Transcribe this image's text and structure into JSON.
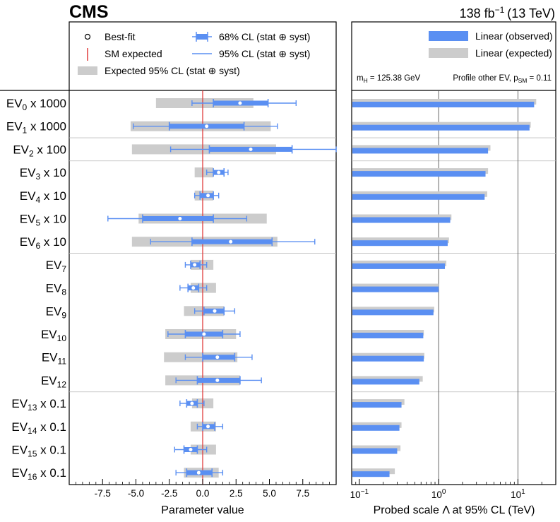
{
  "header": {
    "experiment": "CMS",
    "luminosity": "138 fb",
    "lumi_exp": "−1",
    "energy": "(13 TeV)"
  },
  "legend_left": {
    "bestfit": "Best-fit",
    "sm": "SM expected",
    "cl68": "68% CL (stat ⊕ syst)",
    "cl95": "95% CL (stat ⊕ syst)",
    "exp95": "Expected 95% CL (stat ⊕ syst)"
  },
  "legend_right": {
    "observed": "Linear (observed)",
    "expected": "Linear (expected)",
    "mh_label": "m",
    "mh_sub": "H",
    "mh_value": " = 125.38 GeV",
    "profile_label": "Profile other EV, p",
    "profile_sub": "SM",
    "profile_value": " = 0.11"
  },
  "colors": {
    "accent": "#5a8ff2",
    "expected_band": "#cccccc",
    "sm_line": "#e03c3c",
    "divider": "#bbbbbb"
  },
  "chart_data": [
    {
      "type": "scatter",
      "title": "Parameter value",
      "xlabel": "Parameter value",
      "xlim": [
        -10,
        10
      ],
      "xticks": [
        -7.5,
        -5.0,
        -2.5,
        0.0,
        2.5,
        5.0,
        7.5
      ],
      "xtick_labels": [
        "-7.5",
        "-5.0",
        "-2.5",
        "0.0",
        "2.5",
        "5.0",
        "7.5"
      ],
      "sm_expected": 0,
      "parameters": [
        {
          "base": "EV",
          "sub": "0",
          "suffix": " x 1000",
          "best": 2.8,
          "cl68": [
            0.8,
            4.9
          ],
          "cl95": [
            -0.8,
            7.0
          ],
          "exp95": [
            -3.5,
            3.8
          ]
        },
        {
          "base": "EV",
          "sub": "1",
          "suffix": " x 1000",
          "best": 0.3,
          "cl68": [
            -2.5,
            3.1
          ],
          "cl95": [
            -5.2,
            5.6
          ],
          "exp95": [
            -5.4,
            5.1
          ]
        },
        {
          "base": "EV",
          "sub": "2",
          "suffix": " x 100",
          "best": 3.6,
          "cl68": [
            0.5,
            6.7
          ],
          "cl95": [
            -2.4,
            10.0
          ],
          "exp95": [
            -5.3,
            5.5
          ]
        },
        {
          "base": "EV",
          "sub": "3",
          "suffix": " x 10",
          "best": 1.2,
          "cl68": [
            0.8,
            1.6
          ],
          "cl95": [
            0.3,
            1.9
          ],
          "exp95": [
            -0.6,
            0.8
          ]
        },
        {
          "base": "EV",
          "sub": "4",
          "suffix": " x 10",
          "best": 0.4,
          "cl68": [
            -0.2,
            0.8
          ],
          "cl95": [
            -0.6,
            1.2
          ],
          "exp95": [
            -0.6,
            0.8
          ]
        },
        {
          "base": "EV",
          "sub": "5",
          "suffix": " x 10",
          "best": -1.7,
          "cl68": [
            -4.5,
            0.8
          ],
          "cl95": [
            -7.1,
            3.3
          ],
          "exp95": [
            -4.8,
            4.8
          ]
        },
        {
          "base": "EV",
          "sub": "6",
          "suffix": " x 10",
          "best": 2.1,
          "cl68": [
            -0.8,
            5.2
          ],
          "cl95": [
            -3.9,
            8.4
          ],
          "exp95": [
            -5.3,
            5.6
          ]
        },
        {
          "base": "EV",
          "sub": "7",
          "suffix": "",
          "best": -0.6,
          "cl68": [
            -0.9,
            -0.2
          ],
          "cl95": [
            -1.3,
            0.3
          ],
          "exp95": [
            -0.9,
            0.8
          ]
        },
        {
          "base": "EV",
          "sub": "8",
          "suffix": "",
          "best": -0.7,
          "cl68": [
            -1.1,
            -0.3
          ],
          "cl95": [
            -1.7,
            0.3
          ],
          "exp95": [
            -0.9,
            1.0
          ]
        },
        {
          "base": "EV",
          "sub": "9",
          "suffix": "",
          "best": 0.9,
          "cl68": [
            0.1,
            1.6
          ],
          "cl95": [
            -0.6,
            2.4
          ],
          "exp95": [
            -1.4,
            1.6
          ]
        },
        {
          "base": "EV",
          "sub": "10",
          "suffix": "",
          "best": 0.1,
          "cl68": [
            -1.3,
            1.5
          ],
          "cl95": [
            -2.6,
            2.8
          ],
          "exp95": [
            -2.8,
            2.5
          ]
        },
        {
          "base": "EV",
          "sub": "11",
          "suffix": "",
          "best": 1.1,
          "cl68": [
            0.0,
            2.4
          ],
          "cl95": [
            -1.3,
            3.7
          ],
          "exp95": [
            -2.9,
            2.6
          ]
        },
        {
          "base": "EV",
          "sub": "12",
          "suffix": "",
          "best": 1.1,
          "cl68": [
            -0.4,
            2.8
          ],
          "cl95": [
            -2.0,
            4.4
          ],
          "exp95": [
            -2.8,
            2.8
          ]
        },
        {
          "base": "EV",
          "sub": "13",
          "suffix": " x 0.1",
          "best": -0.8,
          "cl68": [
            -1.2,
            -0.4
          ],
          "cl95": [
            -1.7,
            0.1
          ],
          "exp95": [
            -0.8,
            0.8
          ]
        },
        {
          "base": "EV",
          "sub": "14",
          "suffix": " x 0.1",
          "best": 0.4,
          "cl68": [
            0.0,
            0.9
          ],
          "cl95": [
            -0.4,
            1.5
          ],
          "exp95": [
            -0.9,
            1.0
          ]
        },
        {
          "base": "EV",
          "sub": "15",
          "suffix": " x 0.1",
          "best": -0.9,
          "cl68": [
            -1.4,
            -0.4
          ],
          "cl95": [
            -2.1,
            0.3
          ],
          "exp95": [
            -0.9,
            1.0
          ]
        },
        {
          "base": "EV",
          "sub": "16",
          "suffix": " x 0.1",
          "best": -0.3,
          "cl68": [
            -1.2,
            0.7
          ],
          "cl95": [
            -2.0,
            1.5
          ],
          "exp95": [
            -1.4,
            1.2
          ]
        }
      ],
      "group_dividers_after": [
        1,
        2,
        6,
        12
      ]
    },
    {
      "type": "bar",
      "orientation": "horizontal",
      "xlabel": "Probed scale Λ at 95% CL (TeV)",
      "xscale": "log",
      "xlim": [
        0.08,
        30
      ],
      "xticks": [
        0.1,
        1,
        10
      ],
      "xtick_labels": [
        {
          "base": "10",
          "exp": "−1"
        },
        {
          "base": "10",
          "exp": "0"
        },
        {
          "base": "10",
          "exp": "1"
        }
      ],
      "reference_lines": [
        1,
        10
      ],
      "series": [
        {
          "name": "Linear (observed)",
          "values": [
            16.0,
            14.0,
            4.2,
            3.9,
            3.8,
            1.4,
            1.3,
            1.2,
            1.0,
            0.86,
            0.64,
            0.65,
            0.57,
            0.34,
            0.32,
            0.3,
            0.24
          ]
        },
        {
          "name": "Linear (expected)",
          "values": [
            17.0,
            14.5,
            4.5,
            4.2,
            4.1,
            1.45,
            1.35,
            1.25,
            1.0,
            0.88,
            0.65,
            0.66,
            0.63,
            0.37,
            0.34,
            0.33,
            0.28
          ]
        }
      ]
    }
  ]
}
